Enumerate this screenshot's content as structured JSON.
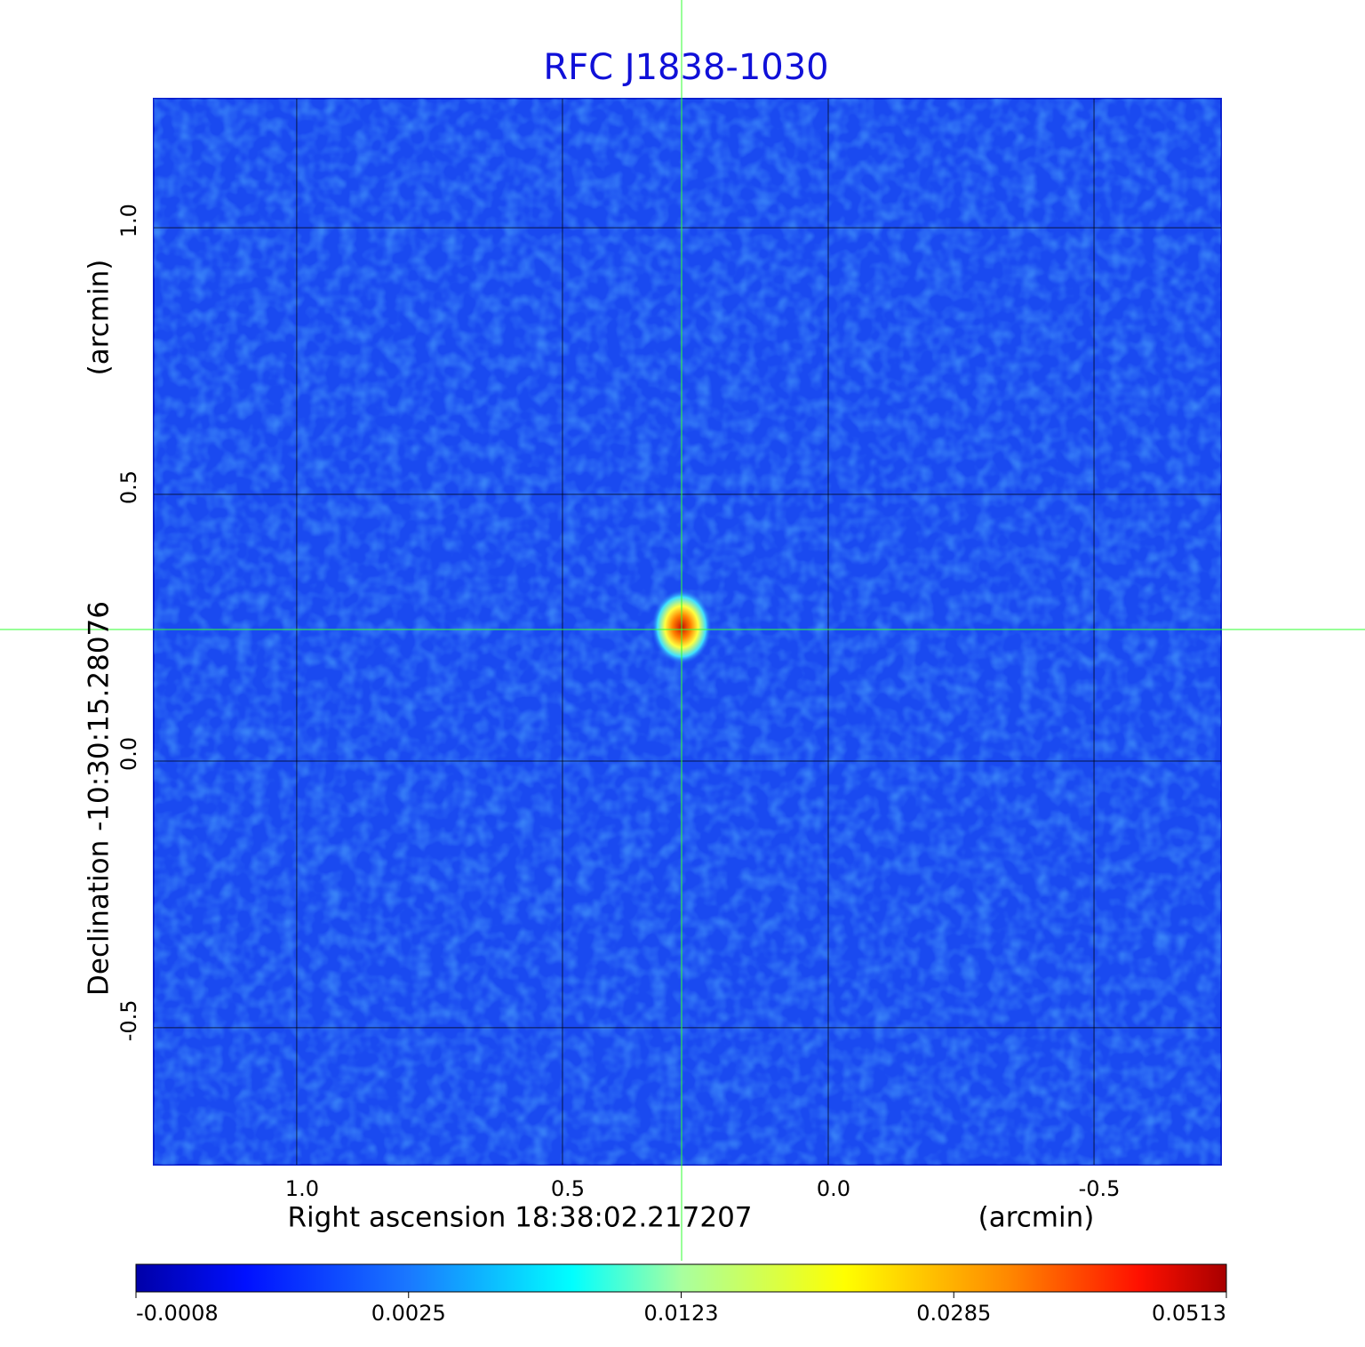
{
  "chart_data": {
    "type": "image",
    "title": "RFC J1838-1030",
    "x_label": "Right ascension  18:38:02.217207",
    "x_unit": "(arcmin)",
    "y_label": "Declination  -10:30:15.28076",
    "y_unit": "(arcmin)",
    "xlim": [
      1.269,
      -0.739
    ],
    "xticks": [
      {
        "value": 1,
        "label": "1.0"
      },
      0.5,
      {
        "value": 0,
        "label": "0.0"
      },
      -0.5
    ],
    "ylim": [
      -0.757,
      1.242
    ],
    "yticks": [
      {
        "value": 1,
        "label": "1.0"
      },
      0.5,
      {
        "value": 0,
        "label": "0.0"
      },
      -0.5
    ],
    "grid": true,
    "colorbar_ticks": [
      -0.0008,
      0.0025,
      0.0123,
      0.0285,
      0.0513
    ]
  }
}
